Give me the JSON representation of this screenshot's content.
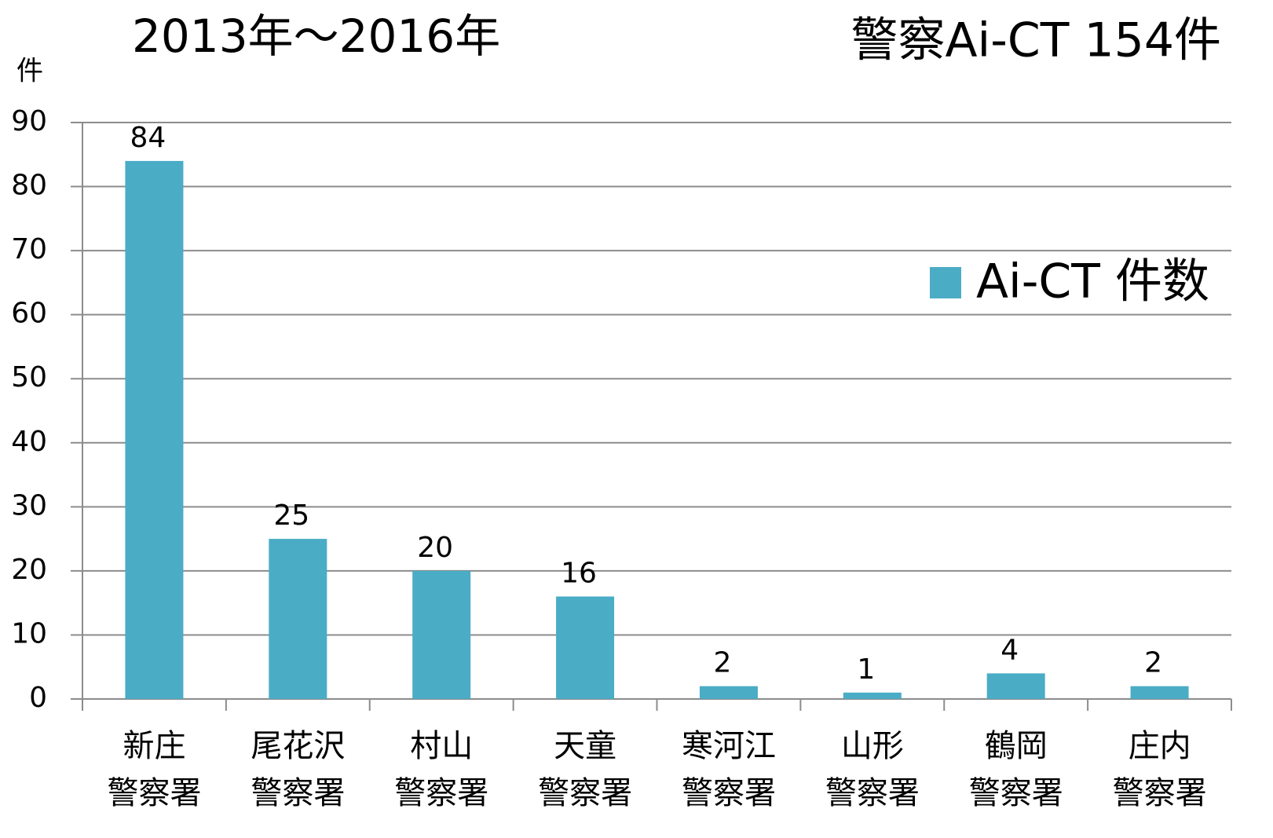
{
  "chart_data": {
    "type": "bar",
    "title": "2013年～2016年",
    "subtitle": "警察Ai-CT 154件",
    "y_label": "件",
    "categories": [
      "新庄\n警察署",
      "尾花沢\n警察署",
      "村山\n警察署",
      "天童\n警察署",
      "寒河江\n警察署",
      "山形\n警察署",
      "鶴岡\n警察署",
      "庄内\n警察署"
    ],
    "series": [
      {
        "name": "Ai-CT 件数",
        "color": "#4bacc6",
        "values": [
          84,
          25,
          20,
          16,
          2,
          1,
          4,
          2
        ]
      }
    ],
    "ylim": [
      0,
      90
    ],
    "yticks": [
      0,
      10,
      20,
      30,
      40,
      50,
      60,
      70,
      80,
      90
    ],
    "grid": true,
    "legend": "right"
  }
}
